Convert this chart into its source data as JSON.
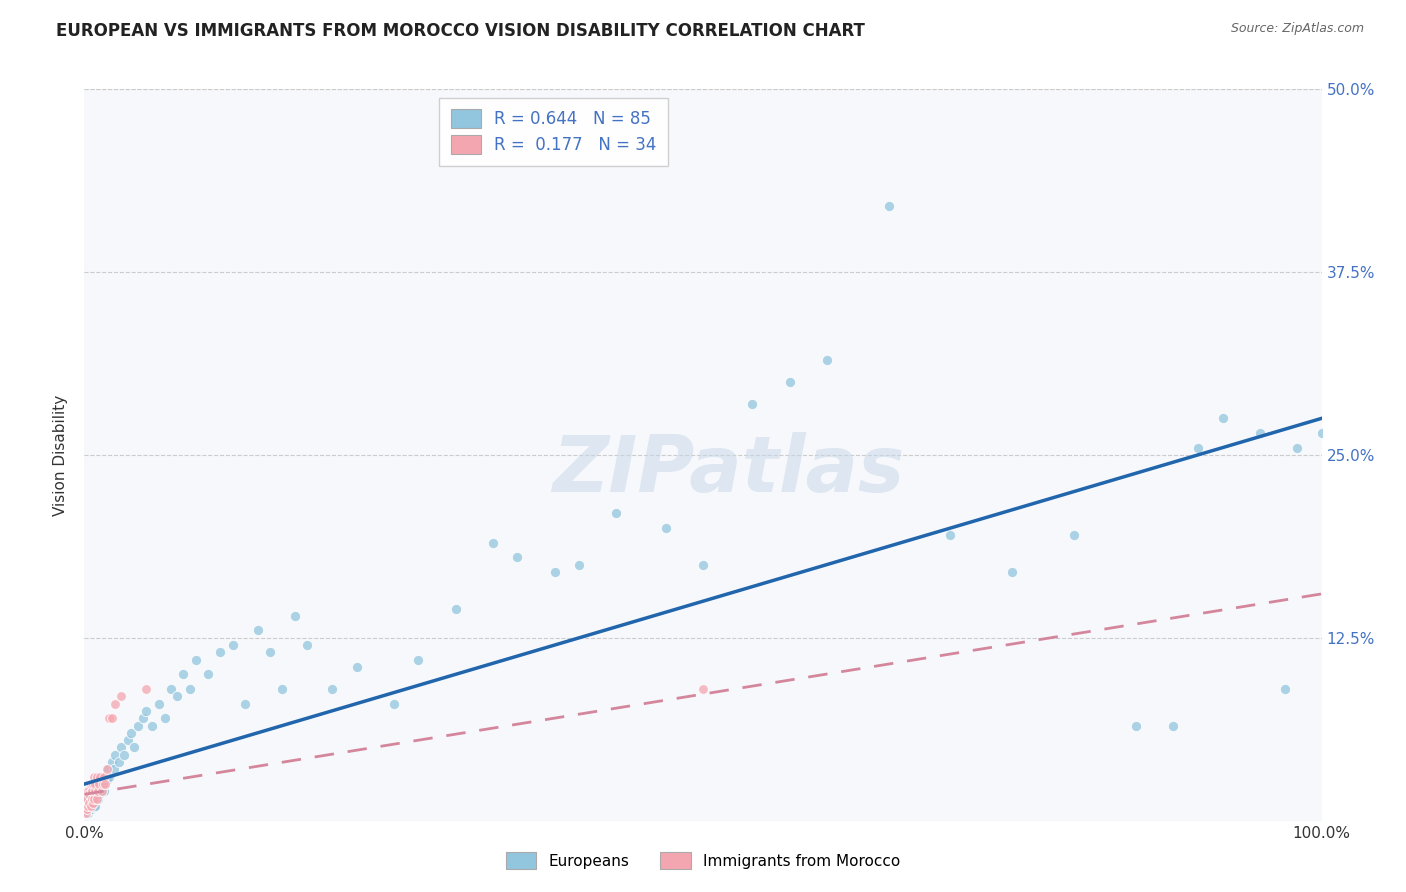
{
  "title": "EUROPEAN VS IMMIGRANTS FROM MOROCCO VISION DISABILITY CORRELATION CHART",
  "source": "Source: ZipAtlas.com",
  "ylabel": "Vision Disability",
  "xlim": [
    0,
    1.0
  ],
  "ylim": [
    0,
    0.5
  ],
  "ytick_labels": [
    "",
    "12.5%",
    "25.0%",
    "37.5%",
    "50.0%"
  ],
  "yticks": [
    0.0,
    0.125,
    0.25,
    0.375,
    0.5
  ],
  "euro_R": 0.644,
  "euro_N": 85,
  "morocco_R": 0.177,
  "morocco_N": 34,
  "euro_color": "#92c5de",
  "morocco_color": "#f4a6b0",
  "euro_line_color": "#2166ac",
  "morocco_line_color": "#d4879c",
  "watermark": "ZIPatlas",
  "background_color": "#ffffff",
  "plot_bg_color": "#f7f8fc",
  "euro_x": [
    0.001,
    0.002,
    0.002,
    0.003,
    0.003,
    0.004,
    0.004,
    0.005,
    0.005,
    0.006,
    0.006,
    0.007,
    0.007,
    0.008,
    0.008,
    0.009,
    0.009,
    0.01,
    0.01,
    0.011,
    0.012,
    0.013,
    0.014,
    0.015,
    0.016,
    0.017,
    0.018,
    0.019,
    0.02,
    0.022,
    0.024,
    0.025,
    0.028,
    0.03,
    0.032,
    0.035,
    0.038,
    0.04,
    0.043,
    0.047,
    0.05,
    0.055,
    0.06,
    0.065,
    0.07,
    0.075,
    0.08,
    0.085,
    0.09,
    0.1,
    0.11,
    0.12,
    0.13,
    0.14,
    0.15,
    0.16,
    0.17,
    0.18,
    0.2,
    0.22,
    0.25,
    0.27,
    0.3,
    0.33,
    0.35,
    0.38,
    0.4,
    0.43,
    0.47,
    0.5,
    0.54,
    0.57,
    0.6,
    0.65,
    0.7,
    0.75,
    0.8,
    0.85,
    0.88,
    0.9,
    0.92,
    0.95,
    0.97,
    0.98,
    1.0
  ],
  "euro_y": [
    0.01,
    0.008,
    0.012,
    0.005,
    0.015,
    0.007,
    0.01,
    0.008,
    0.018,
    0.01,
    0.015,
    0.012,
    0.02,
    0.009,
    0.018,
    0.01,
    0.015,
    0.02,
    0.025,
    0.015,
    0.018,
    0.022,
    0.025,
    0.03,
    0.02,
    0.025,
    0.028,
    0.035,
    0.03,
    0.04,
    0.035,
    0.045,
    0.04,
    0.05,
    0.045,
    0.055,
    0.06,
    0.05,
    0.065,
    0.07,
    0.075,
    0.065,
    0.08,
    0.07,
    0.09,
    0.085,
    0.1,
    0.09,
    0.11,
    0.1,
    0.115,
    0.12,
    0.08,
    0.13,
    0.115,
    0.09,
    0.14,
    0.12,
    0.09,
    0.105,
    0.08,
    0.11,
    0.145,
    0.19,
    0.18,
    0.17,
    0.175,
    0.21,
    0.2,
    0.175,
    0.285,
    0.3,
    0.315,
    0.42,
    0.195,
    0.17,
    0.195,
    0.065,
    0.065,
    0.255,
    0.275,
    0.265,
    0.09,
    0.255,
    0.265
  ],
  "morocco_x": [
    0.001,
    0.001,
    0.002,
    0.002,
    0.003,
    0.003,
    0.004,
    0.004,
    0.005,
    0.005,
    0.006,
    0.006,
    0.007,
    0.007,
    0.008,
    0.008,
    0.009,
    0.009,
    0.01,
    0.01,
    0.011,
    0.012,
    0.013,
    0.014,
    0.015,
    0.016,
    0.017,
    0.018,
    0.02,
    0.022,
    0.025,
    0.03,
    0.05,
    0.5
  ],
  "morocco_y": [
    0.005,
    0.01,
    0.008,
    0.015,
    0.01,
    0.02,
    0.012,
    0.018,
    0.01,
    0.025,
    0.015,
    0.02,
    0.012,
    0.025,
    0.015,
    0.03,
    0.02,
    0.025,
    0.015,
    0.03,
    0.02,
    0.025,
    0.03,
    0.02,
    0.025,
    0.03,
    0.025,
    0.035,
    0.07,
    0.07,
    0.08,
    0.085,
    0.09,
    0.09
  ],
  "euro_line_x0": 0.0,
  "euro_line_y0": 0.025,
  "euro_line_x1": 1.0,
  "euro_line_y1": 0.275,
  "morocco_line_x0": 0.0,
  "morocco_line_y0": 0.018,
  "morocco_line_x1": 1.0,
  "morocco_line_y1": 0.155
}
